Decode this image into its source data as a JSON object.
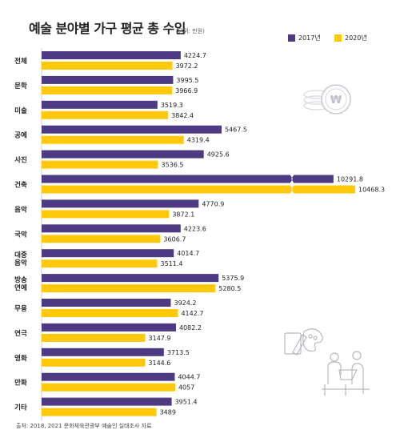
{
  "header": {
    "title": "예술 분야별 가구 평균 총 수입",
    "unit": "(단위: 만원)"
  },
  "legend": [
    {
      "label": "2017년",
      "color": "#4e3a82"
    },
    {
      "label": "2020년",
      "color": "#ffc80a"
    }
  ],
  "source": "출처: 2018, 2021 문화체육관광부 예술인 실태조사 자료",
  "decorations": [
    "coin-stack-icon",
    "painting-artist-icon",
    "musicians-icon"
  ],
  "chart_data": {
    "type": "bar",
    "orientation": "horizontal",
    "title": "예술 분야별 가구 평균 총 수입",
    "unit": "(단위: 만원)",
    "categories": [
      "전체",
      "문학",
      "미술",
      "공예",
      "사진",
      "건축",
      "음악",
      "국악",
      "대중\n음악",
      "방송\n연예",
      "무용",
      "연극",
      "영화",
      "만화",
      "기타"
    ],
    "series": [
      {
        "name": "2017년",
        "color": "#4e3a82",
        "values": [
          4224.7,
          3995.5,
          3519.3,
          5467.5,
          4925.6,
          10291.8,
          4770.9,
          4223.6,
          4014.7,
          5375.9,
          3924.2,
          4082.2,
          3713.5,
          4044.7,
          3951.4
        ]
      },
      {
        "name": "2020년",
        "color": "#ffc80a",
        "values": [
          3972.2,
          3966.9,
          3842.4,
          4319.4,
          3536.5,
          10468.3,
          3872.1,
          3606.7,
          3511.4,
          5280.5,
          4142.7,
          3147.9,
          3144.6,
          4057,
          3489
        ]
      }
    ],
    "axis_break": true,
    "legend_position": "top-right",
    "grid": false
  }
}
